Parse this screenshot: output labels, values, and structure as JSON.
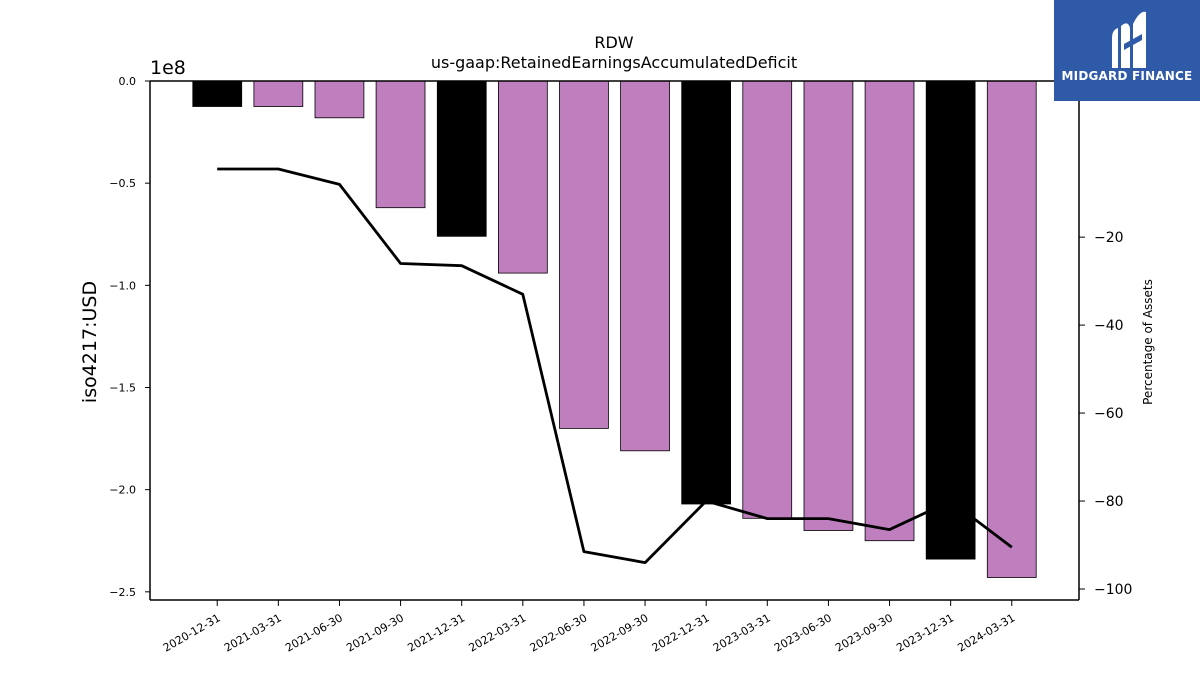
{
  "chart_data": {
    "type": "bar",
    "title": "RDW",
    "subtitle": "us-gaap:RetainedEarningsAccumulatedDeficit",
    "ylabel": "iso4217:USD",
    "y2label": "Percentage of Assets",
    "offset_text": "1e8",
    "categories": [
      "2020-12-31",
      "2021-03-31",
      "2021-06-30",
      "2021-09-30",
      "2021-12-31",
      "2022-03-31",
      "2022-06-30",
      "2022-09-30",
      "2022-12-31",
      "2023-03-31",
      "2023-06-30",
      "2023-09-30",
      "2023-12-31",
      "2024-03-31"
    ],
    "values": [
      -12500000,
      -12500000,
      -18000000,
      -62000000,
      -76000000,
      -94000000,
      -170000000,
      -181000000,
      -207000000,
      -214000000,
      -220000000,
      -225000000,
      -234000000,
      -243000000
    ],
    "bar_colors": [
      "#000000",
      "#bf7fbf",
      "#bf7fbf",
      "#bf7fbf",
      "#000000",
      "#bf7fbf",
      "#bf7fbf",
      "#bf7fbf",
      "#000000",
      "#bf7fbf",
      "#bf7fbf",
      "#bf7fbf",
      "#000000",
      "#bf7fbf"
    ],
    "ylim": [
      -254000000,
      0
    ],
    "yticks": [
      0,
      -50000000,
      -100000000,
      -150000000,
      -200000000,
      -250000000
    ],
    "ytick_labels": [
      "0.0",
      "−0.5",
      "−1.0",
      "−1.5",
      "−2.0",
      "−2.5"
    ],
    "line_series": {
      "values": [
        -4.5,
        -4.5,
        -8,
        -26,
        -26.5,
        -33,
        -91.5,
        -94,
        -80,
        -84,
        -84,
        -86.5,
        -80,
        -90.5
      ],
      "color": "#000000"
    },
    "y2lim": [
      -102.5,
      15.5
    ],
    "y2ticks": [
      -20,
      -40,
      -60,
      -80,
      -100
    ],
    "y2tick_labels": [
      "−20",
      "−40",
      "−60",
      "−80",
      "−100"
    ]
  },
  "logo": {
    "text": "MIDGARD FINANCE",
    "bg": "#2f5aa8",
    "fg": "#ffffff"
  }
}
